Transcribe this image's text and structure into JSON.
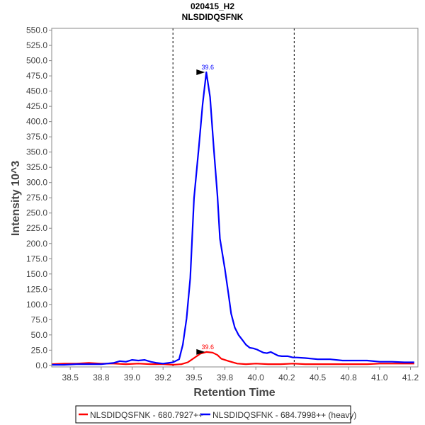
{
  "chart_data": {
    "type": "line",
    "title": "020415_H2",
    "subtitle": "NLSDIDQSFNK",
    "xlabel": "Retention Time",
    "ylabel": "Intensity 10^3",
    "xlim": [
      38.35,
      41.31
    ],
    "ylim": [
      -2.5,
      553
    ],
    "x_ticks": [
      38.5,
      38.75,
      39.0,
      39.25,
      39.5,
      39.75,
      40.0,
      40.25,
      40.5,
      40.75,
      41.0,
      41.25
    ],
    "x_tick_labels": [
      "38.5",
      "38.8",
      "39.0",
      "39.2",
      "39.5",
      "39.8",
      "40.0",
      "40.2",
      "40.5",
      "40.8",
      "41.0",
      "41.2"
    ],
    "y_ticks": [
      0,
      25,
      50,
      75,
      100,
      125,
      150,
      175,
      200,
      225,
      250,
      275,
      300,
      325,
      350,
      375,
      400,
      425,
      450,
      475,
      500,
      525,
      550
    ],
    "y_tick_labels": [
      "0.0",
      "25.0",
      "50.0",
      "75.0",
      "100.0",
      "125.0",
      "150.0",
      "175.0",
      "200.0",
      "225.0",
      "250.0",
      "275.0",
      "300.0",
      "325.0",
      "350.0",
      "375.0",
      "400.0",
      "425.0",
      "450.0",
      "475.0",
      "500.0",
      "525.0",
      "550.0"
    ],
    "boundaries": [
      39.33,
      40.31
    ],
    "legend_position": "bottom",
    "series": [
      {
        "name": "NLSDIDQSFNK - 680.7927++",
        "color": "#ff0000",
        "peak_label": "39.6",
        "peak": [
          39.6,
          22
        ],
        "x": [
          38.35,
          38.45,
          38.55,
          38.65,
          38.75,
          38.85,
          38.95,
          39.05,
          39.15,
          39.25,
          39.33,
          39.4,
          39.45,
          39.5,
          39.55,
          39.6,
          39.65,
          39.69,
          39.72,
          39.78,
          39.85,
          39.92,
          40.0,
          40.1,
          40.2,
          40.3,
          40.4,
          40.5,
          40.6,
          40.7,
          40.8,
          40.9,
          41.0,
          41.1,
          41.2,
          41.28
        ],
        "y": [
          2,
          3,
          3,
          4,
          3,
          3,
          2,
          3,
          2,
          2,
          1,
          2,
          5,
          12,
          19,
          22,
          21,
          17,
          11,
          7,
          3,
          2,
          3,
          2,
          2,
          3,
          2,
          2,
          2,
          2,
          2,
          2,
          3,
          3,
          3,
          3
        ]
      },
      {
        "name": "NLSDIDQSFNK - 684.7998++ (heavy)",
        "color": "#0000ff",
        "peak_label": "39.6",
        "peak": [
          39.6,
          481
        ],
        "x": [
          38.35,
          38.45,
          38.55,
          38.65,
          38.75,
          38.85,
          38.9,
          38.95,
          39.0,
          39.05,
          39.1,
          39.15,
          39.2,
          39.25,
          39.33,
          39.38,
          39.41,
          39.44,
          39.47,
          39.5,
          39.54,
          39.57,
          39.6,
          39.63,
          39.66,
          39.69,
          39.71,
          39.75,
          39.78,
          39.8,
          39.83,
          39.86,
          39.89,
          39.92,
          39.95,
          39.98,
          40.01,
          40.03,
          40.06,
          40.09,
          40.12,
          40.15,
          40.18,
          40.21,
          40.26,
          40.3,
          40.33,
          40.4,
          40.5,
          40.6,
          40.7,
          40.8,
          40.9,
          41.0,
          41.1,
          41.2,
          41.28
        ],
        "y": [
          1,
          1,
          2,
          2,
          2,
          4,
          7,
          6,
          9,
          8,
          9,
          6,
          4,
          3,
          5,
          10,
          34,
          77,
          143,
          274,
          359,
          429,
          481,
          440,
          356,
          278,
          208,
          158,
          115,
          85,
          62,
          50,
          42,
          34,
          29,
          28,
          26,
          24,
          21,
          20,
          22,
          19,
          16,
          15,
          15,
          13,
          13,
          12,
          10,
          10,
          8,
          8,
          8,
          6,
          6,
          5,
          5
        ]
      }
    ]
  }
}
